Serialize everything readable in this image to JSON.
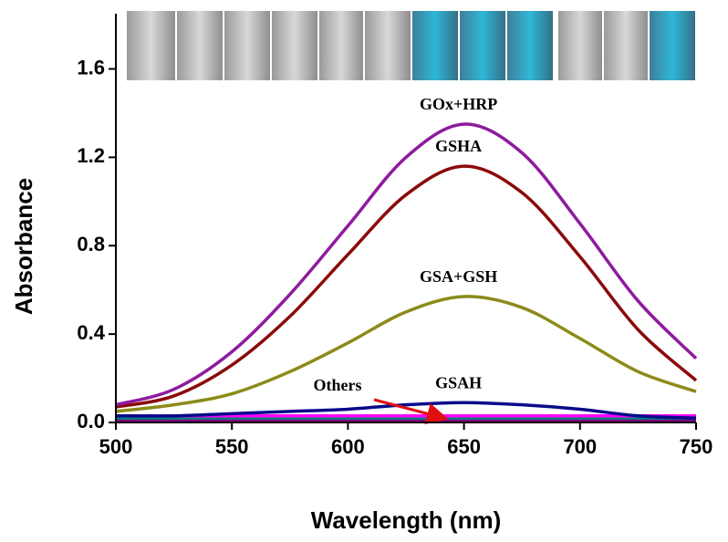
{
  "chart_data": {
    "type": "line",
    "x_label": "Wavelength (nm)",
    "y_label": "Absorbance",
    "x": [
      500,
      525,
      550,
      575,
      600,
      625,
      650,
      675,
      700,
      725,
      750
    ],
    "xlim": [
      500,
      750
    ],
    "xticks": [
      500,
      550,
      600,
      650,
      700,
      750
    ],
    "ylim": [
      0,
      1.85
    ],
    "yticks": [
      {
        "value": 0,
        "label": "0.0"
      },
      {
        "value": 0.4,
        "label": "0.4"
      },
      {
        "value": 0.8,
        "label": "0.8"
      },
      {
        "value": 1.2,
        "label": "1.2"
      },
      {
        "value": 1.6,
        "label": "1.6"
      }
    ],
    "series": [
      {
        "name": "GOx+HRP",
        "color": "#8e1b9e",
        "values": [
          0.08,
          0.15,
          0.32,
          0.58,
          0.89,
          1.2,
          1.35,
          1.22,
          0.9,
          0.55,
          0.29
        ]
      },
      {
        "name": "GSHA",
        "color": "#8b0a0a",
        "values": [
          0.07,
          0.12,
          0.26,
          0.48,
          0.76,
          1.03,
          1.16,
          1.04,
          0.75,
          0.42,
          0.19
        ]
      },
      {
        "name": "GSA+GSH",
        "color": "#8b8b1a",
        "values": [
          0.05,
          0.08,
          0.13,
          0.23,
          0.36,
          0.5,
          0.57,
          0.52,
          0.38,
          0.23,
          0.14
        ]
      },
      {
        "name": "GSAH",
        "color": "#0a0a8b",
        "values": [
          0.03,
          0.03,
          0.04,
          0.05,
          0.06,
          0.08,
          0.09,
          0.08,
          0.06,
          0.03,
          0.02
        ]
      },
      {
        "color": "#ff00ff",
        "values": [
          0.03,
          0.03,
          0.03,
          0.03,
          0.03,
          0.03,
          0.03,
          0.03,
          0.03,
          0.03,
          0.03
        ]
      },
      {
        "color": "#008080",
        "values": [
          0.02,
          0.02,
          0.02,
          0.02,
          0.02,
          0.02,
          0.02,
          0.02,
          0.02,
          0.02,
          0.02
        ]
      },
      {
        "color": "#7f007f",
        "values": [
          0.01,
          0.01,
          0.01,
          0.01,
          0.01,
          0.01,
          0.01,
          0.01,
          0.01,
          0.01,
          0.01
        ]
      },
      {
        "color": "#e01010",
        "values": [
          0.015,
          0.015,
          0.015,
          0.015,
          0.015,
          0.015,
          0.015,
          0.015,
          0.015,
          0.015,
          0.015
        ]
      }
    ],
    "annotation": "Others"
  }
}
